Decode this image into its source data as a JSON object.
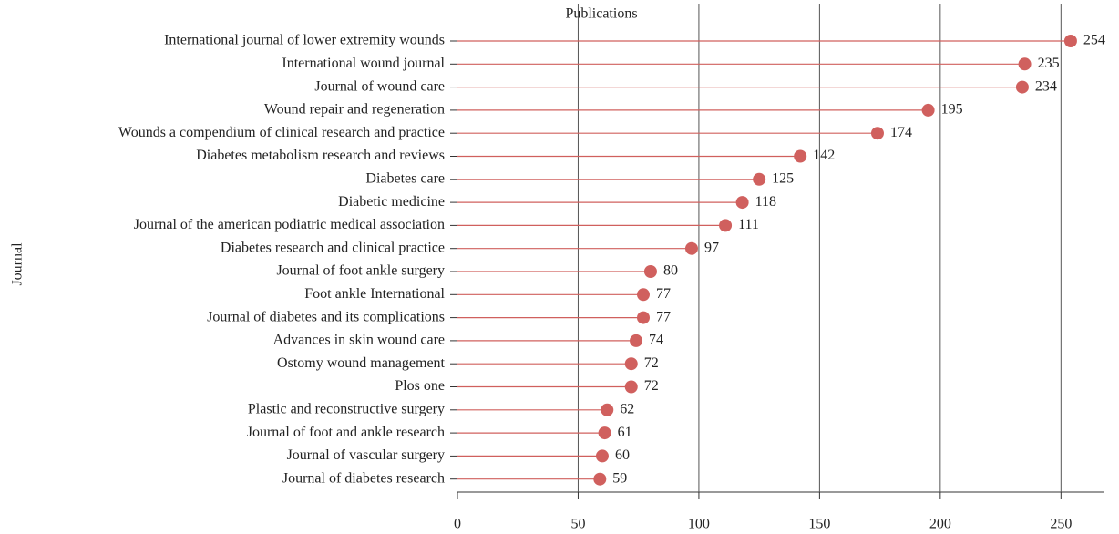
{
  "chart_data": {
    "type": "lollipop",
    "x_label": "Publications",
    "y_label": "Journal",
    "categories": [
      "International journal of lower extremity wounds",
      "International wound journal",
      "Journal of wound care",
      "Wound repair and regeneration",
      "Wounds a compendium of clinical research and practice",
      "Diabetes metabolism research and reviews",
      "Diabetes care",
      "Diabetic medicine",
      "Journal of the american podiatric medical association",
      "Diabetes research and clinical practice",
      "Journal of foot ankle surgery",
      "Foot ankle International",
      "Journal of diabetes and its complications",
      "Advances in skin wound care",
      "Ostomy wound management",
      "Plos one",
      "Plastic and reconstructive surgery",
      "Journal of foot and ankle research",
      "Journal of vascular surgery",
      "Journal of diabetes research"
    ],
    "values": [
      254,
      235,
      234,
      195,
      174,
      142,
      125,
      118,
      111,
      97,
      80,
      77,
      77,
      74,
      72,
      72,
      62,
      61,
      60,
      59
    ],
    "color": "#d0605e",
    "xlim": [
      0,
      268
    ],
    "xticks": [
      0,
      50,
      100,
      150,
      200,
      250
    ],
    "grid": true
  }
}
